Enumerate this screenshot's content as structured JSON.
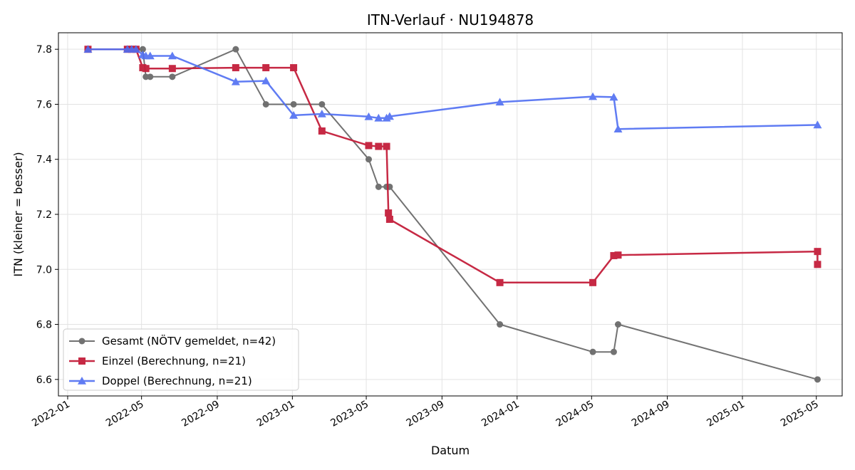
{
  "chart_data": {
    "type": "line",
    "title": "ITN-Verlauf · NU194878",
    "xlabel": "Datum",
    "ylabel": "ITN  (kleiner = besser)",
    "xlim": [
      "2021-12-17",
      "2025-06-12"
    ],
    "ylim": [
      6.54,
      7.86
    ],
    "x_ticks": [
      "2022-01",
      "2022-05",
      "2022-09",
      "2023-01",
      "2023-05",
      "2023-09",
      "2024-01",
      "2024-05",
      "2024-09",
      "2025-01",
      "2025-05"
    ],
    "y_ticks": [
      6.6,
      6.8,
      7.0,
      7.2,
      7.4,
      7.6,
      7.8
    ],
    "grid": true,
    "legend_position": "lower-left",
    "series": [
      {
        "name": "Gesamt (NÖTV gemeldet, n=42)",
        "color": "#444444",
        "marker": "circle",
        "points": [
          [
            "2022-02-03",
            7.8
          ],
          [
            "2022-04-08",
            7.8
          ],
          [
            "2022-04-15",
            7.8
          ],
          [
            "2022-04-22",
            7.8
          ],
          [
            "2022-05-03",
            7.8
          ],
          [
            "2022-05-08",
            7.7
          ],
          [
            "2022-05-15",
            7.7
          ],
          [
            "2022-06-20",
            7.7
          ],
          [
            "2022-10-01",
            7.8
          ],
          [
            "2022-11-19",
            7.6
          ],
          [
            "2023-01-03",
            7.6
          ],
          [
            "2023-02-18",
            7.6
          ],
          [
            "2023-05-05",
            7.4
          ],
          [
            "2023-05-21",
            7.3
          ],
          [
            "2023-06-03",
            7.3
          ],
          [
            "2023-06-08",
            7.3
          ],
          [
            "2023-12-04",
            6.8
          ],
          [
            "2024-05-03",
            6.7
          ],
          [
            "2024-06-06",
            6.7
          ],
          [
            "2024-06-13",
            6.8
          ],
          [
            "2025-05-03",
            6.6
          ]
        ]
      },
      {
        "name": "Einzel (Berechnung, n=21)",
        "color": "#c41e3a",
        "marker": "square",
        "points": [
          [
            "2022-02-03",
            7.8
          ],
          [
            "2022-04-08",
            7.8
          ],
          [
            "2022-04-15",
            7.8
          ],
          [
            "2022-04-22",
            7.8
          ],
          [
            "2022-05-03",
            7.733
          ],
          [
            "2022-05-08",
            7.73
          ],
          [
            "2022-06-20",
            7.73
          ],
          [
            "2022-10-01",
            7.733
          ],
          [
            "2022-11-19",
            7.733
          ],
          [
            "2023-01-03",
            7.733
          ],
          [
            "2023-02-18",
            7.503
          ],
          [
            "2023-05-05",
            7.45
          ],
          [
            "2023-05-21",
            7.447
          ],
          [
            "2023-06-03",
            7.447
          ],
          [
            "2023-06-06",
            7.205
          ],
          [
            "2023-06-08",
            7.182
          ],
          [
            "2023-12-04",
            6.952
          ],
          [
            "2024-05-03",
            6.952
          ],
          [
            "2024-06-06",
            7.05
          ],
          [
            "2024-06-13",
            7.052
          ],
          [
            "2025-05-03",
            7.065
          ],
          [
            "2025-05-03",
            7.018
          ]
        ]
      },
      {
        "name": "Doppel (Berechnung, n=21)",
        "color": "#4f6ef2",
        "marker": "triangle",
        "points": [
          [
            "2022-02-03",
            7.8
          ],
          [
            "2022-04-08",
            7.8
          ],
          [
            "2022-04-15",
            7.8
          ],
          [
            "2022-04-22",
            7.8
          ],
          [
            "2022-05-03",
            7.78
          ],
          [
            "2022-05-08",
            7.776
          ],
          [
            "2022-05-15",
            7.776
          ],
          [
            "2022-06-20",
            7.776
          ],
          [
            "2022-10-01",
            7.682
          ],
          [
            "2022-11-19",
            7.685
          ],
          [
            "2023-01-03",
            7.56
          ],
          [
            "2023-02-18",
            7.565
          ],
          [
            "2023-05-05",
            7.555
          ],
          [
            "2023-05-21",
            7.55
          ],
          [
            "2023-06-03",
            7.55
          ],
          [
            "2023-06-08",
            7.556
          ],
          [
            "2023-12-04",
            7.608
          ],
          [
            "2024-05-03",
            7.628
          ],
          [
            "2024-06-06",
            7.626
          ],
          [
            "2024-06-13",
            7.51
          ],
          [
            "2025-05-03",
            7.525
          ]
        ]
      }
    ]
  }
}
